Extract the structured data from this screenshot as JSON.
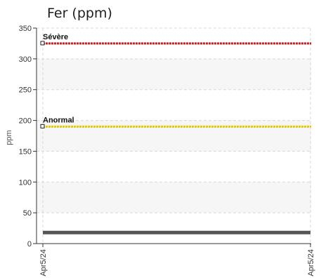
{
  "chart_data": {
    "type": "line",
    "title": "Fer (ppm)",
    "ylabel": "ppm",
    "xlabel": "",
    "ylim": [
      0,
      350
    ],
    "yticks": [
      0,
      50,
      100,
      150,
      200,
      250,
      300,
      350
    ],
    "x_ticks": [
      "Apr5/24",
      "Apr5/24"
    ],
    "grid": true,
    "thresholds": [
      {
        "name": "Sévère",
        "value": 325,
        "color": "#e0191b"
      },
      {
        "name": "Anormal",
        "value": 190,
        "color": "#e8c60a"
      }
    ],
    "series": [
      {
        "values": [
          18,
          18
        ],
        "color": "#555555"
      }
    ]
  }
}
